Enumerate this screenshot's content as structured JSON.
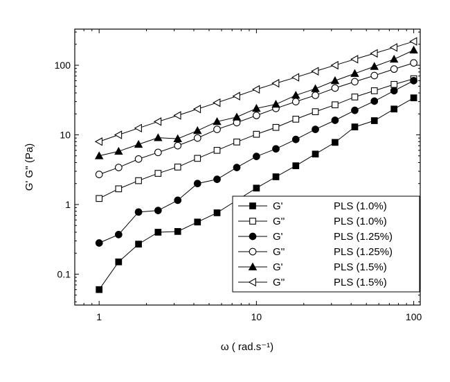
{
  "chart_data": {
    "type": "scatter",
    "x_scale": "log",
    "y_scale": "log",
    "xlim": [
      0.7,
      110
    ],
    "ylim": [
      0.036,
      330
    ],
    "xticks": [
      1,
      10,
      100
    ],
    "xtick_labels": [
      "1",
      "10",
      "100"
    ],
    "yticks": [
      0.1,
      1,
      10,
      100
    ],
    "ytick_labels": [
      "0.1",
      "1",
      "10",
      "100"
    ],
    "xlabel": "ω ( rad.s⁻¹)",
    "ylabel": "G' G'' (Pa)",
    "legend_position": "bottom-right",
    "x": [
      1,
      1.33,
      1.78,
      2.37,
      3.16,
      4.22,
      5.62,
      7.5,
      10,
      13.3,
      17.8,
      23.7,
      31.6,
      42.2,
      56.2,
      75,
      100
    ],
    "series": [
      {
        "name": "G'",
        "label": "PLS (1.0%)",
        "marker": "square-filled",
        "values": [
          0.06,
          0.15,
          0.27,
          0.4,
          0.41,
          0.56,
          0.76,
          1.15,
          1.72,
          2.5,
          3.6,
          5.3,
          7.8,
          13,
          16,
          23.5,
          34
        ]
      },
      {
        "name": "G''",
        "label": "PLS (1.0%)",
        "marker": "square-open",
        "values": [
          1.22,
          1.68,
          2.2,
          2.8,
          3.45,
          4.6,
          6.0,
          7.9,
          10.2,
          12.8,
          16.8,
          21.5,
          27,
          35,
          43,
          53,
          64
        ]
      },
      {
        "name": "G'",
        "label": "PLS (1.25%)",
        "marker": "circle-filled",
        "values": [
          0.28,
          0.37,
          0.78,
          0.82,
          1.15,
          2.0,
          2.3,
          3.4,
          4.9,
          6.3,
          8.6,
          12,
          16.2,
          22.5,
          30.5,
          43,
          60
        ]
      },
      {
        "name": "G''",
        "label": "PLS (1.25%)",
        "marker": "circle-open",
        "values": [
          2.7,
          3.4,
          4.5,
          5.6,
          7.0,
          9.0,
          12,
          15,
          19,
          24,
          30,
          37,
          47,
          58,
          71,
          88,
          108
        ]
      },
      {
        "name": "G'",
        "label": "PLS (1.5%)",
        "marker": "triangle-up-filled",
        "values": [
          5.0,
          5.8,
          7.3,
          9.1,
          8.8,
          11.5,
          15.5,
          18,
          24,
          27.5,
          37,
          46,
          60,
          76,
          96,
          122,
          165
        ]
      },
      {
        "name": "G''",
        "label": "PLS (1.5%)",
        "marker": "triangle-left-open",
        "values": [
          8.0,
          10,
          12.5,
          15.5,
          19,
          23.5,
          29,
          36,
          45,
          55,
          67,
          82,
          100,
          122,
          148,
          180,
          220
        ]
      }
    ]
  }
}
